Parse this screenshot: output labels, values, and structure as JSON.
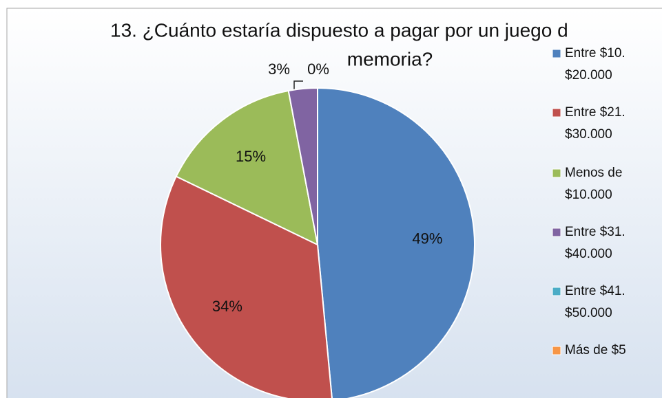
{
  "chart_data": {
    "type": "pie",
    "title_lines": [
      "13. ¿Cuánto estaría dispuesto a pagar por un juego d",
      "memoria?"
    ],
    "categories": [
      [
        "Entre $10.",
        "$20.000"
      ],
      [
        "Entre $21.",
        "$30.000"
      ],
      [
        "Menos de",
        "$10.000"
      ],
      [
        "Entre $31.",
        "$40.000"
      ],
      [
        "Entre $41.",
        "$50.000"
      ],
      [
        "Más de $5"
      ]
    ],
    "values": [
      49,
      34,
      15,
      3,
      0,
      0
    ],
    "value_labels": [
      "49%",
      "34%",
      "15%",
      "3%",
      "0%",
      null
    ],
    "colors": [
      "#4f81bd",
      "#c0504d",
      "#9bbb59",
      "#8064a2",
      "#4bacc6",
      "#f79646"
    ],
    "legend": "right"
  }
}
